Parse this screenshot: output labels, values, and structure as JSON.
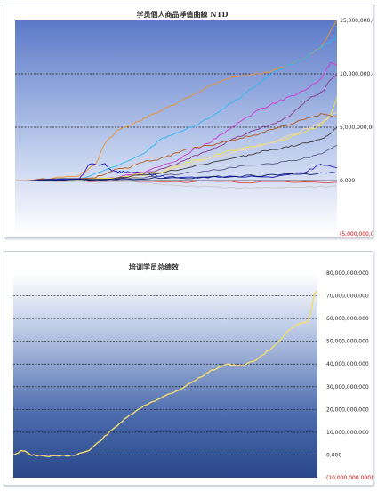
{
  "chart_data": [
    {
      "type": "line",
      "title": "学员個人商品淨值曲線 NTD",
      "ylim": [
        -5000000000,
        15000000000
      ],
      "y_ticks": [
        {
          "value": 15000000000,
          "label": "15,000,000,000"
        },
        {
          "value": 10000000000,
          "label": "10,000,000,000"
        },
        {
          "value": 5000000000,
          "label": "5,000,000,000"
        },
        {
          "value": 0,
          "label": "0.000"
        },
        {
          "value": -5000000000,
          "label": "(5,000,000,000)"
        }
      ],
      "x_range": [
        0,
        100
      ],
      "grid": "dashed at 5,000,000,000 and 10,000,000,000",
      "background": "gradient blue to white",
      "series": [
        {
          "color": "#f0922e",
          "x": [
            0,
            10,
            20,
            25,
            28,
            32,
            36,
            40,
            45,
            50,
            55,
            60,
            65,
            70,
            75,
            80,
            85,
            90,
            95,
            98,
            100
          ],
          "values": [
            0,
            100000000,
            500000000,
            1500000000,
            3500000000,
            4800000000,
            5200000000,
            5800000000,
            6500000000,
            7200000000,
            8000000000,
            8800000000,
            9500000000,
            9800000000,
            10000000000,
            10300000000,
            10800000000,
            11500000000,
            12500000000,
            14000000000,
            15000000000
          ]
        },
        {
          "color": "#2eb8f0",
          "x": [
            0,
            20,
            30,
            40,
            45,
            50,
            55,
            60,
            65,
            70,
            75,
            80,
            85,
            90,
            95,
            98,
            100
          ],
          "values": [
            0,
            100000000,
            1200000000,
            2500000000,
            3800000000,
            4500000000,
            5000000000,
            5800000000,
            6800000000,
            7800000000,
            9000000000,
            10000000000,
            10800000000,
            11500000000,
            12500000000,
            13000000000,
            13500000000
          ]
        },
        {
          "color": "#d03ad0",
          "x": [
            0,
            30,
            40,
            50,
            55,
            60,
            65,
            70,
            75,
            80,
            85,
            90,
            95,
            97,
            98,
            100
          ],
          "values": [
            0,
            200000000,
            800000000,
            1800000000,
            2800000000,
            3500000000,
            4500000000,
            5500000000,
            6500000000,
            7200000000,
            7800000000,
            8500000000,
            9500000000,
            10500000000,
            11000000000,
            10800000000
          ]
        },
        {
          "color": "#8a3a8a",
          "x": [
            0,
            30,
            40,
            50,
            55,
            60,
            65,
            70,
            75,
            80,
            85,
            88,
            90,
            92,
            94,
            96,
            98,
            100
          ],
          "values": [
            0,
            100000000,
            600000000,
            1500000000,
            2200000000,
            2800000000,
            3500000000,
            4200000000,
            4800000000,
            5300000000,
            6000000000,
            6800000000,
            7400000000,
            7800000000,
            8000000000,
            8500000000,
            9500000000,
            10000000000
          ]
        },
        {
          "color": "#f2e64a",
          "x": [
            0,
            30,
            45,
            50,
            55,
            60,
            65,
            70,
            75,
            80,
            85,
            90,
            95,
            98,
            100
          ],
          "values": [
            0,
            200000000,
            800000000,
            1300000000,
            1800000000,
            2200000000,
            2600000000,
            3000000000,
            3300000000,
            3600000000,
            4000000000,
            4500000000,
            5200000000,
            6200000000,
            7800000000
          ]
        },
        {
          "color": "#f7d8a4",
          "x": [
            0,
            30,
            45,
            50,
            55,
            60,
            65,
            70,
            75,
            80,
            85,
            90,
            95,
            98,
            100
          ],
          "values": [
            0,
            100000000,
            700000000,
            1200000000,
            1600000000,
            2000000000,
            2400000000,
            2800000000,
            3200000000,
            3600000000,
            4200000000,
            4800000000,
            5400000000,
            6000000000,
            6500000000
          ]
        },
        {
          "color": "#b55a1a",
          "x": [
            0,
            25,
            30,
            35,
            40,
            45,
            50,
            55,
            60,
            65,
            70,
            75,
            80,
            85,
            90,
            95,
            100
          ],
          "values": [
            0,
            300000000,
            900000000,
            1200000000,
            1800000000,
            2000000000,
            2600000000,
            3000000000,
            3300000000,
            3600000000,
            4000000000,
            4300000000,
            4800000000,
            5200000000,
            5800000000,
            6200000000,
            6000000000
          ]
        },
        {
          "color": "#3a3a3a",
          "x": [
            0,
            30,
            40,
            50,
            60,
            70,
            75,
            80,
            85,
            90,
            95,
            98,
            100
          ],
          "values": [
            0,
            200000000,
            500000000,
            1000000000,
            1600000000,
            2200000000,
            2600000000,
            2900000000,
            3200000000,
            3500000000,
            3800000000,
            4400000000,
            5000000000
          ]
        },
        {
          "color": "#5a5a8a",
          "x": [
            0,
            30,
            40,
            50,
            60,
            70,
            80,
            85,
            90,
            95,
            100
          ],
          "values": [
            0,
            100000000,
            300000000,
            600000000,
            900000000,
            1300000000,
            1600000000,
            1800000000,
            2100000000,
            2500000000,
            3300000000
          ]
        },
        {
          "color": "#2020c0",
          "x": [
            0,
            20,
            23,
            28,
            30,
            33,
            36,
            40,
            45,
            50,
            60,
            70,
            80,
            90,
            95,
            100
          ],
          "values": [
            0,
            100000000,
            1500000000,
            1500000000,
            900000000,
            800000000,
            800000000,
            700000000,
            400000000,
            300000000,
            300000000,
            400000000,
            300000000,
            800000000,
            1500000000,
            1200000000
          ]
        },
        {
          "color": "#0a1a6a",
          "x": [
            0,
            30,
            40,
            50,
            60,
            70,
            80,
            90,
            100
          ],
          "values": [
            0,
            100000000,
            200000000,
            200000000,
            300000000,
            400000000,
            500000000,
            600000000,
            700000000
          ]
        },
        {
          "color": "#e05050",
          "x": [
            0,
            20,
            40,
            60,
            80,
            100
          ],
          "values": [
            0,
            -50000000,
            -100000000,
            -100000000,
            -150000000,
            -150000000
          ]
        },
        {
          "color": "#c8c8c8",
          "x": [
            0,
            20,
            40,
            50,
            60,
            70,
            80,
            90,
            100
          ],
          "values": [
            0,
            -100000000,
            -200000000,
            -500000000,
            -600000000,
            -700000000,
            -700000000,
            -600000000,
            -500000000
          ]
        }
      ]
    },
    {
      "type": "line",
      "title": "培训学员总绩效",
      "ylim": [
        -10000000000,
        80000000000
      ],
      "y_ticks": [
        {
          "value": 80000000000,
          "label": "80,000,000.000"
        },
        {
          "value": 70000000000,
          "label": "70,000,000.000"
        },
        {
          "value": 60000000000,
          "label": "60,000,000.000"
        },
        {
          "value": 50000000000,
          "label": "50,000,000.000"
        },
        {
          "value": 40000000000,
          "label": "40,000,000.000"
        },
        {
          "value": 30000000000,
          "label": "30,000,000.000"
        },
        {
          "value": 20000000000,
          "label": "20,000,000.000"
        },
        {
          "value": 10000000000,
          "label": "10,000,000.000"
        },
        {
          "value": 0,
          "label": "0.000"
        },
        {
          "value": -10000000000,
          "label": "(10,000,000.000)"
        }
      ],
      "x_range": [
        0,
        100
      ],
      "grid": "dashed horizontal at every tick",
      "background": "gradient white to blue",
      "series": [
        {
          "color": "#f2dc6e",
          "x": [
            0,
            3,
            6,
            10,
            15,
            20,
            25,
            30,
            35,
            40,
            45,
            50,
            55,
            60,
            65,
            70,
            75,
            80,
            85,
            90,
            93,
            95,
            97,
            98,
            99,
            100
          ],
          "values": [
            0,
            2000000000,
            0,
            -500000000,
            -500000000,
            0,
            2000000000,
            8000000000,
            14000000000,
            19000000000,
            23000000000,
            26000000000,
            29000000000,
            33000000000,
            37000000000,
            40000000000,
            39000000000,
            42000000000,
            47000000000,
            54000000000,
            57000000000,
            58000000000,
            58500000000,
            64000000000,
            71000000000,
            72000000000
          ]
        }
      ]
    }
  ]
}
